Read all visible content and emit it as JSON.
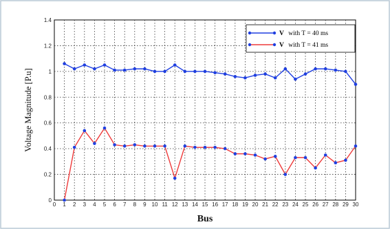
{
  "chart_data": {
    "type": "line",
    "title": "",
    "xlabel": "Bus",
    "ylabel": "Voltage Magnitude [P.u]",
    "xlim": [
      0,
      30
    ],
    "ylim": [
      0,
      1.4
    ],
    "x_ticks": [
      0,
      1,
      2,
      3,
      4,
      5,
      6,
      7,
      8,
      9,
      10,
      11,
      12,
      13,
      14,
      15,
      16,
      17,
      18,
      19,
      20,
      21,
      22,
      23,
      24,
      25,
      26,
      27,
      28,
      29,
      30
    ],
    "y_ticks": [
      0,
      0.2,
      0.4,
      0.6,
      0.8,
      1,
      1.2,
      1.4
    ],
    "grid": true,
    "legend_position": "top-right",
    "x": [
      1,
      2,
      3,
      4,
      5,
      6,
      7,
      8,
      9,
      10,
      11,
      12,
      13,
      14,
      15,
      16,
      17,
      18,
      19,
      20,
      21,
      22,
      23,
      24,
      25,
      26,
      27,
      28,
      29,
      30
    ],
    "series": [
      {
        "name": "with  T = 40 ms",
        "legend_symbol": "V",
        "line_color": "#1f3fe0",
        "marker_color": "#1f3fe0",
        "values": [
          1.06,
          1.02,
          1.05,
          1.02,
          1.05,
          1.01,
          1.01,
          1.02,
          1.02,
          1.0,
          1.0,
          1.05,
          1.0,
          1.0,
          1.0,
          0.99,
          0.98,
          0.96,
          0.95,
          0.97,
          0.98,
          0.95,
          1.02,
          0.94,
          0.98,
          1.02,
          1.02,
          1.01,
          1.0,
          0.9
        ]
      },
      {
        "name": "with   T = 41 ms",
        "legend_symbol": "V",
        "line_color": "#ee3a3a",
        "marker_color": "#1f3fe0",
        "values": [
          0.0,
          0.41,
          0.54,
          0.44,
          0.56,
          0.43,
          0.42,
          0.43,
          0.42,
          0.42,
          0.42,
          0.17,
          0.42,
          0.41,
          0.41,
          0.41,
          0.4,
          0.36,
          0.36,
          0.35,
          0.32,
          0.34,
          0.2,
          0.33,
          0.33,
          0.25,
          0.35,
          0.29,
          0.31,
          0.42
        ]
      }
    ]
  }
}
